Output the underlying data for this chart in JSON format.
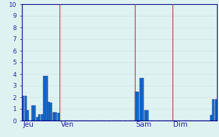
{
  "bar_values": [
    2.1,
    2.1,
    0.9,
    0.0,
    1.3,
    1.3,
    0.3,
    0.55,
    0.55,
    3.8,
    3.8,
    1.6,
    1.55,
    0.7,
    0.7,
    0.65,
    0.0,
    0.0,
    0.0,
    0.0,
    0.0,
    0.0,
    0.0,
    0.0,
    0.0,
    0.0,
    0.0,
    0.0,
    0.0,
    0.0,
    0.0,
    0.0,
    0.0,
    0.0,
    0.0,
    0.0,
    0.0,
    0.0,
    0.0,
    0.0,
    0.0,
    0.0,
    0.0,
    0.0,
    0.0,
    0.0,
    0.0,
    0.0,
    2.5,
    2.5,
    3.65,
    3.65,
    0.9,
    0.9,
    0.0,
    0.0,
    0.0,
    0.0,
    0.0,
    0.0,
    0.0,
    0.0,
    0.0,
    0.0,
    0.0,
    0.0,
    0.0,
    0.0,
    0.0,
    0.0,
    0.0,
    0.0,
    0.0,
    0.0,
    0.0,
    0.0,
    0.0,
    0.0,
    0.0,
    0.0,
    0.5,
    1.8,
    1.8
  ],
  "n_bars": 84,
  "day_labels": [
    "Jeu",
    "Ven",
    "Sam",
    "Dim"
  ],
  "day_positions": [
    0,
    16,
    48,
    64
  ],
  "bar_color": "#1a6ecc",
  "bar_edge_color": "#003399",
  "bg_color": "#dff2f2",
  "grid_minor_color": "#c8dede",
  "grid_major_color": "#b8cece",
  "separator_color": "#aa4444",
  "axis_color": "#000088",
  "text_color": "#2222aa",
  "ylim": [
    0,
    10
  ],
  "yticks": [
    0,
    1,
    2,
    3,
    4,
    5,
    6,
    7,
    8,
    9,
    10
  ],
  "tick_fontsize": 6.5,
  "label_fontsize": 7.5
}
